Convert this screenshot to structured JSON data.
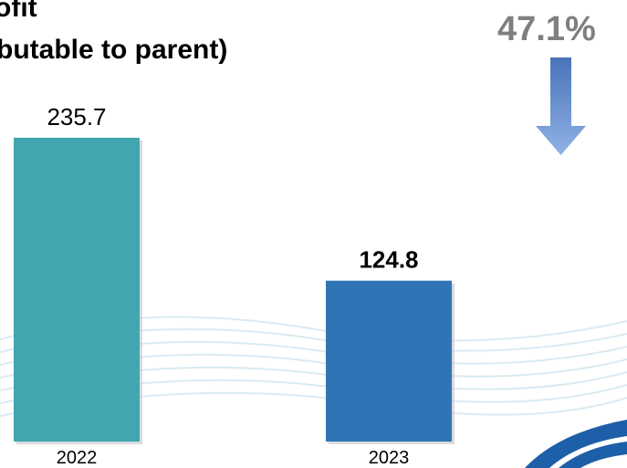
{
  "chart_data": {
    "type": "bar",
    "title_lines": [
      "ofit",
      "butable to parent)"
    ],
    "categories": [
      "2022",
      "2023"
    ],
    "values": [
      235.7,
      124.8
    ],
    "value_labels": [
      "235.7",
      "124.8"
    ],
    "bar_colors": [
      "#41a6ae",
      "#2f74b5"
    ],
    "ylim": [
      0,
      235.7
    ],
    "grid": false,
    "legend": "none",
    "change": {
      "label": "47.1%",
      "direction": "down"
    }
  },
  "colors": {
    "change_text": "#7f7f7f",
    "arrow_light": "#8fb2e6",
    "arrow_dark": "#4a72b8",
    "watermark": "#cfe4ef",
    "logo": "#1d5fa8"
  },
  "icons": {
    "change_arrow": "down-arrow-icon",
    "logo": "company-logo-fragment"
  }
}
